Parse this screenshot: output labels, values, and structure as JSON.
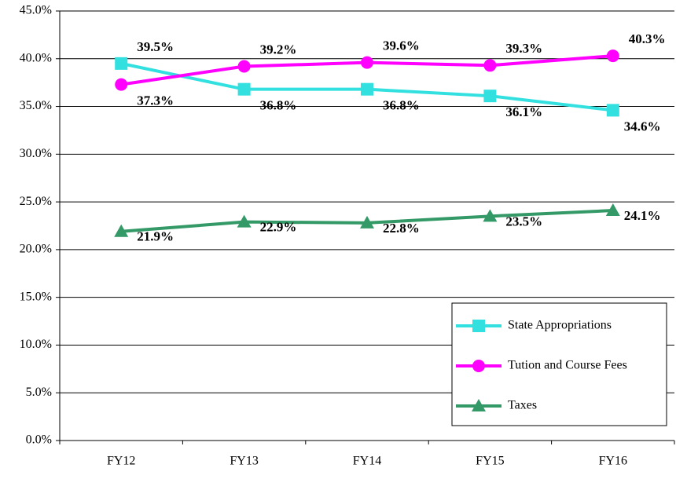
{
  "chart_data": {
    "type": "line",
    "categories": [
      "FY12",
      "FY13",
      "FY14",
      "FY15",
      "FY16"
    ],
    "series": [
      {
        "name": "State Appropriations",
        "color": "#33e0e0",
        "marker": "square",
        "values": [
          39.5,
          36.8,
          36.8,
          36.1,
          34.6
        ],
        "value_labels": [
          "39.5%",
          "36.8%",
          "36.8%",
          "36.1%",
          "34.6%"
        ]
      },
      {
        "name": "Tution and Course Fees",
        "color": "#ff00ff",
        "marker": "circle",
        "values": [
          37.3,
          39.2,
          39.6,
          39.3,
          40.3
        ],
        "value_labels": [
          "37.3%",
          "39.2%",
          "39.6%",
          "39.3%",
          "40.3%"
        ]
      },
      {
        "name": "Taxes",
        "color": "#339966",
        "marker": "triangle",
        "values": [
          21.9,
          22.9,
          22.8,
          23.5,
          24.1
        ],
        "value_labels": [
          "21.9%",
          "22.9%",
          "22.8%",
          "23.5%",
          "24.1%"
        ]
      }
    ],
    "ylim": [
      0,
      45
    ],
    "yticks": [
      {
        "value": 0,
        "label": "0.0%"
      },
      {
        "value": 5,
        "label": "5.0%"
      },
      {
        "value": 10,
        "label": "10.0%"
      },
      {
        "value": 15,
        "label": "15.0%"
      },
      {
        "value": 20,
        "label": "20.0%"
      },
      {
        "value": 25,
        "label": "25.0%"
      },
      {
        "value": 30,
        "label": "30.0%"
      },
      {
        "value": 35,
        "label": "35.0%"
      },
      {
        "value": 40,
        "label": "40.0%"
      },
      {
        "value": 45,
        "label": "45.0%"
      }
    ],
    "grid": true,
    "legend": "lower right"
  }
}
